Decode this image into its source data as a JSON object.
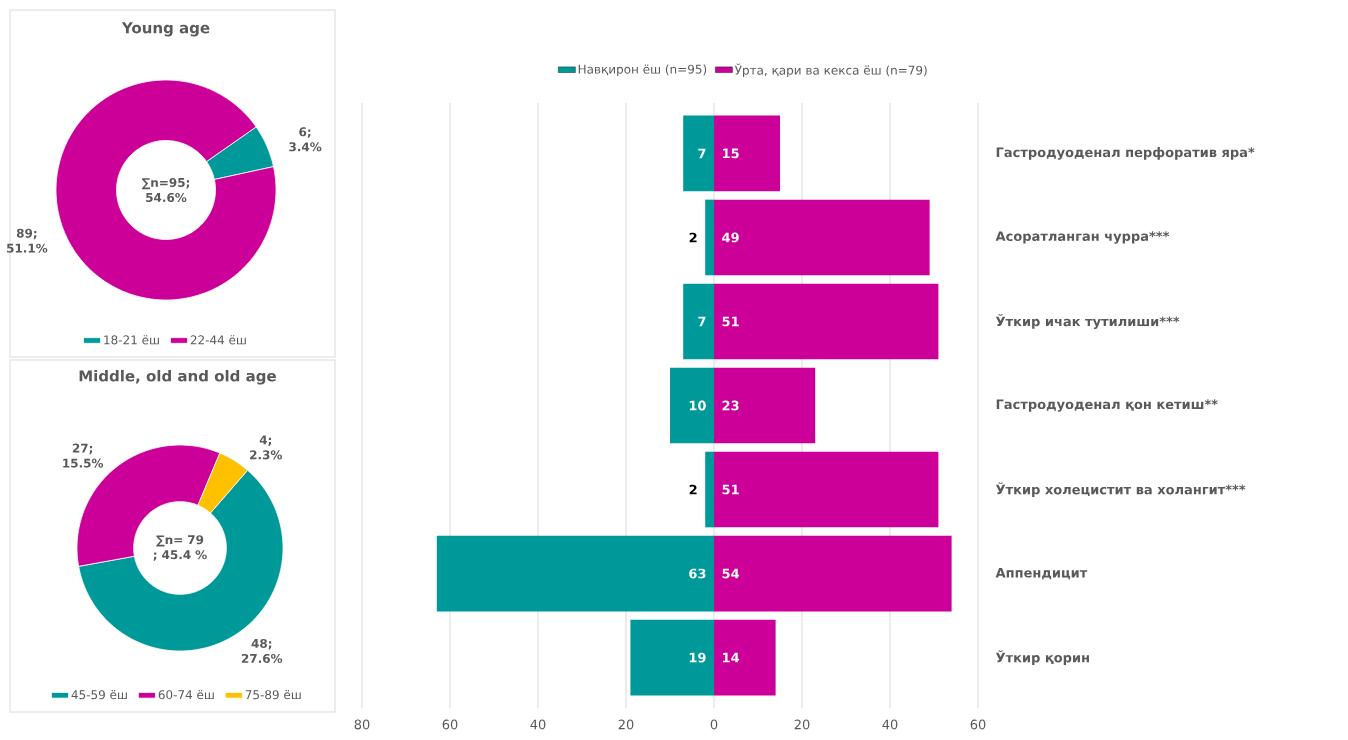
{
  "chart_data": [
    {
      "type": "donut",
      "title": "Young age",
      "categories": [
        "18-21 ёш",
        "22-44 ёш"
      ],
      "values": [
        6,
        89
      ],
      "colors": [
        "#009999",
        "#cc0099"
      ],
      "value_labels": [
        "6; 3.4%",
        "89; 51.1%"
      ],
      "annotations": [
        "∑n=95; 54.6%"
      ],
      "legend": "bottom"
    },
    {
      "type": "donut",
      "title": "Middle, old and old age",
      "categories": [
        "45-59 ёш",
        "60-74 ёш",
        "75-89 ёш"
      ],
      "values": [
        48,
        27,
        4
      ],
      "colors": [
        "#009999",
        "#cc0099",
        "#ffc000"
      ],
      "value_labels": [
        "48; 27.6%",
        "27; 15.5%",
        "4; 2.3%"
      ],
      "annotations": [
        "∑n= 79 ; 45.4 %"
      ],
      "legend": "bottom"
    },
    {
      "type": "bar",
      "orientation": "horizontal",
      "categories": [
        "Гастродуоденал перфоратив яра*",
        "Асоратланган чурра***",
        "Ўткир ичак тутилиши***",
        "Гастродуоденал қон кетиш**",
        "Ўткир холецистит ва холангит***",
        "Аппендицит",
        "Ўткир қорин"
      ],
      "series": [
        {
          "name": "Навқирон ёш (n=95)",
          "color": "#009999",
          "values": [
            7,
            2,
            7,
            10,
            2,
            63,
            19
          ],
          "base": [
            -7,
            -2,
            -7,
            -10,
            -2,
            -63,
            -19
          ]
        },
        {
          "name": "Ўрта, қари ва кекса ёш (n=79)",
          "color": "#cc0099",
          "values": [
            15,
            49,
            51,
            23,
            51,
            54,
            14
          ]
        }
      ],
      "xlim": [
        -80,
        60
      ],
      "xticks": [
        {
          "value": -80,
          "label": "80"
        },
        {
          "value": -60,
          "label": "60"
        },
        {
          "value": -40,
          "label": "40"
        },
        {
          "value": -20,
          "label": "20"
        },
        0,
        20,
        40,
        60
      ],
      "grid": "x",
      "legend": "top",
      "data_labels": true
    }
  ]
}
